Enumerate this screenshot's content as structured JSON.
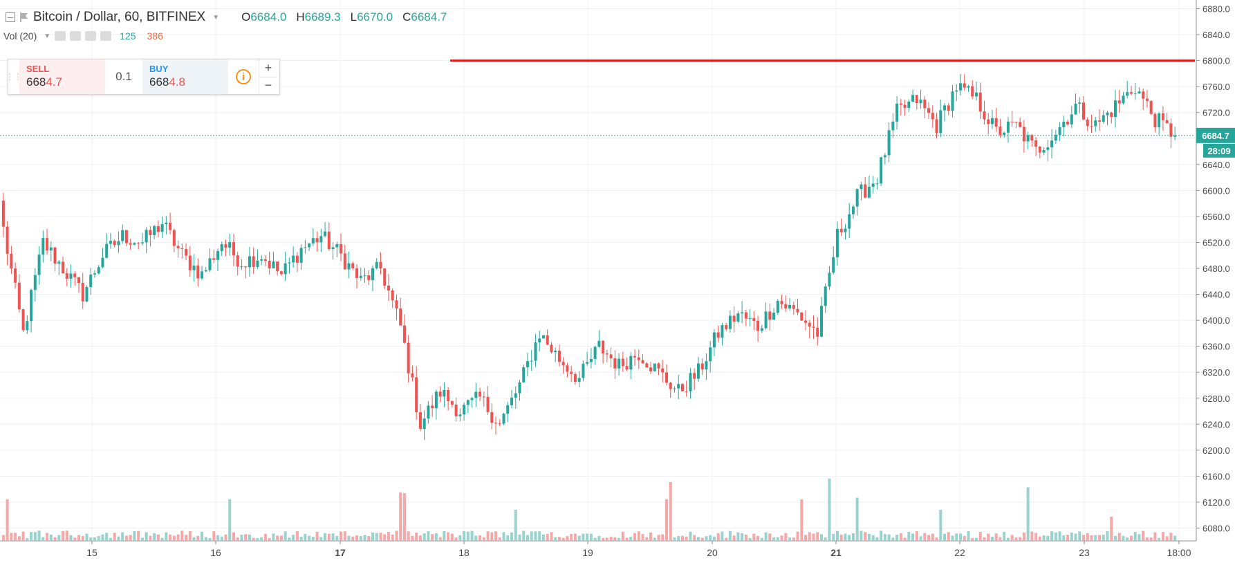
{
  "header": {
    "title": "Bitcoin / Dollar, 60, BITFINEX",
    "ohlc": [
      {
        "key": "O",
        "value": "6684.0"
      },
      {
        "key": "H",
        "value": "6689.3"
      },
      {
        "key": "L",
        "value": "6670.0"
      },
      {
        "key": "C",
        "value": "6684.7"
      }
    ],
    "volume_label": "Vol (20)",
    "volume_value_a": "125",
    "volume_value_b": "386"
  },
  "trade_panel": {
    "sell_label": "SELL",
    "sell_price_big": "668",
    "sell_price_small": "4.7",
    "quantity": "0.1",
    "buy_label": "BUY",
    "buy_price_big": "668",
    "buy_price_small": "4.8",
    "info_glyph": "i",
    "plus": "+",
    "minus": "−"
  },
  "colors": {
    "up": "#26a69a",
    "down": "#ef5350",
    "up_volume": "#9ad3ce",
    "down_volume": "#f5a8a8",
    "resistance_line": "#e3161a",
    "grid": "#eef1f4"
  },
  "chart_data": {
    "type": "candlestick",
    "ylim": [
      6050,
      6880
    ],
    "yticks": [
      6080,
      6120,
      6160,
      6200,
      6240,
      6280,
      6320,
      6360,
      6400,
      6440,
      6480,
      6520,
      6560,
      6600,
      6640,
      6680,
      6720,
      6760,
      6800,
      6840,
      6880
    ],
    "x_tick_labels": [
      "15",
      "16",
      "17",
      "18",
      "19",
      "20",
      "21",
      "22",
      "23",
      "18:00"
    ],
    "last_price_label": "6684.7",
    "countdown_label": "28:09",
    "current_price": 6684.7,
    "horizontal_line": 6800,
    "anchors": [
      6540,
      6380,
      6520,
      6480,
      6440,
      6500,
      6530,
      6520,
      6550,
      6500,
      6470,
      6520,
      6490,
      6500,
      6470,
      6510,
      6530,
      6500,
      6460,
      6480,
      6390,
      6240,
      6290,
      6260,
      6280,
      6240,
      6300,
      6380,
      6340,
      6310,
      6360,
      6330,
      6350,
      6320,
      6290,
      6320,
      6380,
      6410,
      6390,
      6430,
      6410,
      6380,
      6530,
      6590,
      6620,
      6720,
      6740,
      6700,
      6760,
      6740,
      6690,
      6700,
      6660,
      6690,
      6730,
      6700,
      6730,
      6760,
      6710,
      6685
    ],
    "candle_count": 296,
    "volume_spikes": [
      {
        "index": 1,
        "value": 120
      },
      {
        "index": 57,
        "value": 120
      },
      {
        "index": 100,
        "value": 140
      },
      {
        "index": 101,
        "value": 138
      },
      {
        "index": 129,
        "value": 90
      },
      {
        "index": 167,
        "value": 120
      },
      {
        "index": 168,
        "value": 170
      },
      {
        "index": 201,
        "value": 120
      },
      {
        "index": 208,
        "value": 180
      },
      {
        "index": 215,
        "value": 125
      },
      {
        "index": 236,
        "value": 90
      },
      {
        "index": 258,
        "value": 155
      },
      {
        "index": 279,
        "value": 70
      }
    ]
  }
}
